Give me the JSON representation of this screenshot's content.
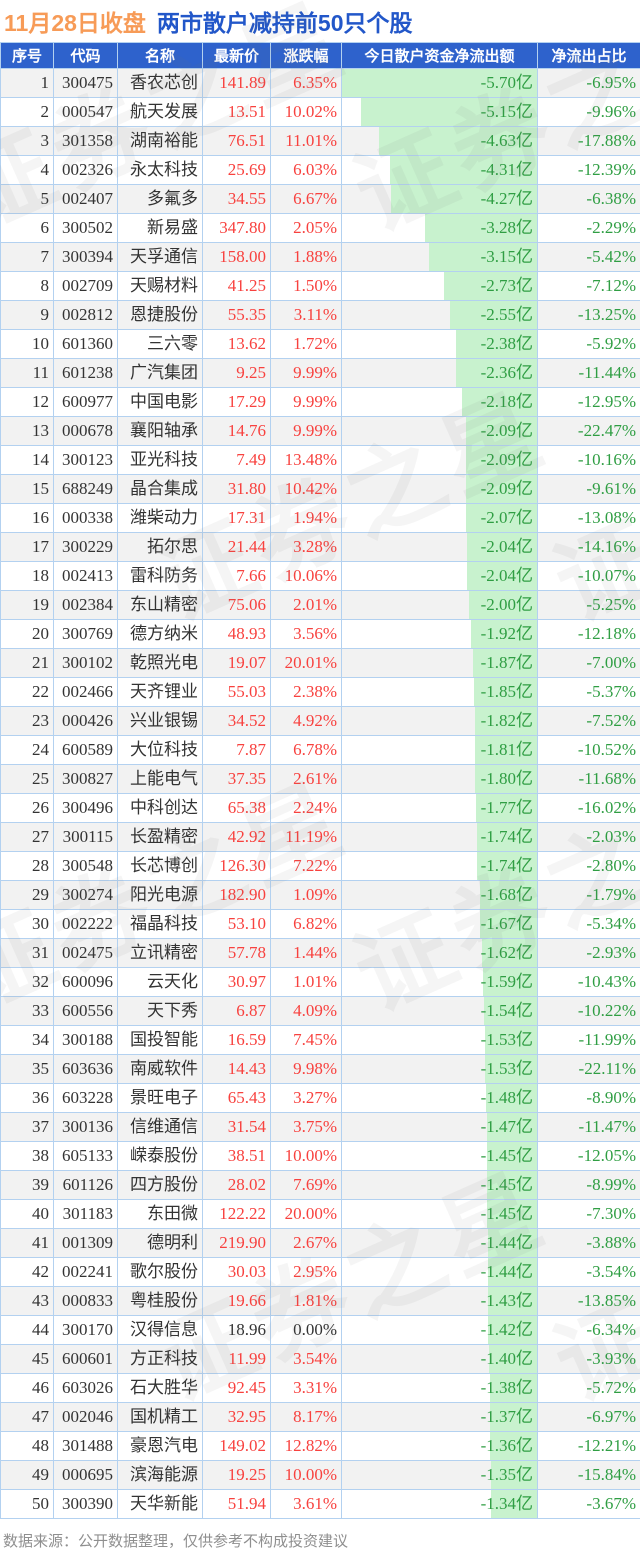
{
  "title": {
    "date_part": "11月28日收盘",
    "main_part": "两市散户减持前50只个股"
  },
  "table": {
    "columns": [
      "序号",
      "代码",
      "名称",
      "最新价",
      "涨跌幅",
      "今日散户资金净流出额",
      "净流出占比"
    ],
    "rows": [
      {
        "no": "1",
        "code": "300475",
        "name": "香农芯创",
        "price": "141.89",
        "change": "6.35%",
        "outflow": "-5.70亿",
        "ratio": "-6.95%"
      },
      {
        "no": "2",
        "code": "000547",
        "name": "航天发展",
        "price": "13.51",
        "change": "10.02%",
        "outflow": "-5.15亿",
        "ratio": "-9.96%"
      },
      {
        "no": "3",
        "code": "301358",
        "name": "湖南裕能",
        "price": "76.51",
        "change": "11.01%",
        "outflow": "-4.63亿",
        "ratio": "-17.88%"
      },
      {
        "no": "4",
        "code": "002326",
        "name": "永太科技",
        "price": "25.69",
        "change": "6.03%",
        "outflow": "-4.31亿",
        "ratio": "-12.39%"
      },
      {
        "no": "5",
        "code": "002407",
        "name": "多氟多",
        "price": "34.55",
        "change": "6.67%",
        "outflow": "-4.27亿",
        "ratio": "-6.38%"
      },
      {
        "no": "6",
        "code": "300502",
        "name": "新易盛",
        "price": "347.80",
        "change": "2.05%",
        "outflow": "-3.28亿",
        "ratio": "-2.29%"
      },
      {
        "no": "7",
        "code": "300394",
        "name": "天孚通信",
        "price": "158.00",
        "change": "1.88%",
        "outflow": "-3.15亿",
        "ratio": "-5.42%"
      },
      {
        "no": "8",
        "code": "002709",
        "name": "天赐材料",
        "price": "41.25",
        "change": "1.50%",
        "outflow": "-2.73亿",
        "ratio": "-7.12%"
      },
      {
        "no": "9",
        "code": "002812",
        "name": "恩捷股份",
        "price": "55.35",
        "change": "3.11%",
        "outflow": "-2.55亿",
        "ratio": "-13.25%"
      },
      {
        "no": "10",
        "code": "601360",
        "name": "三六零",
        "price": "13.62",
        "change": "1.72%",
        "outflow": "-2.38亿",
        "ratio": "-5.92%"
      },
      {
        "no": "11",
        "code": "601238",
        "name": "广汽集团",
        "price": "9.25",
        "change": "9.99%",
        "outflow": "-2.36亿",
        "ratio": "-11.44%"
      },
      {
        "no": "12",
        "code": "600977",
        "name": "中国电影",
        "price": "17.29",
        "change": "9.99%",
        "outflow": "-2.18亿",
        "ratio": "-12.95%"
      },
      {
        "no": "13",
        "code": "000678",
        "name": "襄阳轴承",
        "price": "14.76",
        "change": "9.99%",
        "outflow": "-2.09亿",
        "ratio": "-22.47%"
      },
      {
        "no": "14",
        "code": "300123",
        "name": "亚光科技",
        "price": "7.49",
        "change": "13.48%",
        "outflow": "-2.09亿",
        "ratio": "-10.16%"
      },
      {
        "no": "15",
        "code": "688249",
        "name": "晶合集成",
        "price": "31.80",
        "change": "10.42%",
        "outflow": "-2.09亿",
        "ratio": "-9.61%"
      },
      {
        "no": "16",
        "code": "000338",
        "name": "潍柴动力",
        "price": "17.31",
        "change": "1.94%",
        "outflow": "-2.07亿",
        "ratio": "-13.08%"
      },
      {
        "no": "17",
        "code": "300229",
        "name": "拓尔思",
        "price": "21.44",
        "change": "3.28%",
        "outflow": "-2.04亿",
        "ratio": "-14.16%"
      },
      {
        "no": "18",
        "code": "002413",
        "name": "雷科防务",
        "price": "7.66",
        "change": "10.06%",
        "outflow": "-2.04亿",
        "ratio": "-10.07%"
      },
      {
        "no": "19",
        "code": "002384",
        "name": "东山精密",
        "price": "75.06",
        "change": "2.01%",
        "outflow": "-2.00亿",
        "ratio": "-5.25%"
      },
      {
        "no": "20",
        "code": "300769",
        "name": "德方纳米",
        "price": "48.93",
        "change": "3.56%",
        "outflow": "-1.92亿",
        "ratio": "-12.18%"
      },
      {
        "no": "21",
        "code": "300102",
        "name": "乾照光电",
        "price": "19.07",
        "change": "20.01%",
        "outflow": "-1.87亿",
        "ratio": "-7.00%"
      },
      {
        "no": "22",
        "code": "002466",
        "name": "天齐锂业",
        "price": "55.03",
        "change": "2.38%",
        "outflow": "-1.85亿",
        "ratio": "-5.37%"
      },
      {
        "no": "23",
        "code": "000426",
        "name": "兴业银锡",
        "price": "34.52",
        "change": "4.92%",
        "outflow": "-1.82亿",
        "ratio": "-7.52%"
      },
      {
        "no": "24",
        "code": "600589",
        "name": "大位科技",
        "price": "7.87",
        "change": "6.78%",
        "outflow": "-1.81亿",
        "ratio": "-10.52%"
      },
      {
        "no": "25",
        "code": "300827",
        "name": "上能电气",
        "price": "37.35",
        "change": "2.61%",
        "outflow": "-1.80亿",
        "ratio": "-11.68%"
      },
      {
        "no": "26",
        "code": "300496",
        "name": "中科创达",
        "price": "65.38",
        "change": "2.24%",
        "outflow": "-1.77亿",
        "ratio": "-16.02%"
      },
      {
        "no": "27",
        "code": "300115",
        "name": "长盈精密",
        "price": "42.92",
        "change": "11.19%",
        "outflow": "-1.74亿",
        "ratio": "-2.03%"
      },
      {
        "no": "28",
        "code": "300548",
        "name": "长芯博创",
        "price": "126.30",
        "change": "7.22%",
        "outflow": "-1.74亿",
        "ratio": "-2.80%"
      },
      {
        "no": "29",
        "code": "300274",
        "name": "阳光电源",
        "price": "182.90",
        "change": "1.09%",
        "outflow": "-1.68亿",
        "ratio": "-1.79%"
      },
      {
        "no": "30",
        "code": "002222",
        "name": "福晶科技",
        "price": "53.10",
        "change": "6.82%",
        "outflow": "-1.67亿",
        "ratio": "-5.34%"
      },
      {
        "no": "31",
        "code": "002475",
        "name": "立讯精密",
        "price": "57.78",
        "change": "1.44%",
        "outflow": "-1.62亿",
        "ratio": "-2.93%"
      },
      {
        "no": "32",
        "code": "600096",
        "name": "云天化",
        "price": "30.97",
        "change": "1.01%",
        "outflow": "-1.59亿",
        "ratio": "-10.43%"
      },
      {
        "no": "33",
        "code": "600556",
        "name": "天下秀",
        "price": "6.87",
        "change": "4.09%",
        "outflow": "-1.54亿",
        "ratio": "-10.22%"
      },
      {
        "no": "34",
        "code": "300188",
        "name": "国投智能",
        "price": "16.59",
        "change": "7.45%",
        "outflow": "-1.53亿",
        "ratio": "-11.99%"
      },
      {
        "no": "35",
        "code": "603636",
        "name": "南威软件",
        "price": "14.43",
        "change": "9.98%",
        "outflow": "-1.53亿",
        "ratio": "-22.11%"
      },
      {
        "no": "36",
        "code": "603228",
        "name": "景旺电子",
        "price": "65.43",
        "change": "3.27%",
        "outflow": "-1.48亿",
        "ratio": "-8.90%"
      },
      {
        "no": "37",
        "code": "300136",
        "name": "信维通信",
        "price": "31.54",
        "change": "3.75%",
        "outflow": "-1.47亿",
        "ratio": "-11.47%"
      },
      {
        "no": "38",
        "code": "605133",
        "name": "嵘泰股份",
        "price": "38.51",
        "change": "10.00%",
        "outflow": "-1.45亿",
        "ratio": "-12.05%"
      },
      {
        "no": "39",
        "code": "601126",
        "name": "四方股份",
        "price": "28.02",
        "change": "7.69%",
        "outflow": "-1.45亿",
        "ratio": "-8.99%"
      },
      {
        "no": "40",
        "code": "301183",
        "name": "东田微",
        "price": "122.22",
        "change": "20.00%",
        "outflow": "-1.45亿",
        "ratio": "-7.30%"
      },
      {
        "no": "41",
        "code": "001309",
        "name": "德明利",
        "price": "219.90",
        "change": "2.67%",
        "outflow": "-1.44亿",
        "ratio": "-3.88%"
      },
      {
        "no": "42",
        "code": "002241",
        "name": "歌尔股份",
        "price": "30.03",
        "change": "2.95%",
        "outflow": "-1.44亿",
        "ratio": "-3.54%"
      },
      {
        "no": "43",
        "code": "000833",
        "name": "粤桂股份",
        "price": "19.66",
        "change": "1.81%",
        "outflow": "-1.43亿",
        "ratio": "-13.85%"
      },
      {
        "no": "44",
        "code": "300170",
        "name": "汉得信息",
        "price": "18.96",
        "change": "0.00%",
        "outflow": "-1.42亿",
        "ratio": "-6.34%"
      },
      {
        "no": "45",
        "code": "600601",
        "name": "方正科技",
        "price": "11.99",
        "change": "3.54%",
        "outflow": "-1.40亿",
        "ratio": "-3.93%"
      },
      {
        "no": "46",
        "code": "603026",
        "name": "石大胜华",
        "price": "92.45",
        "change": "3.31%",
        "outflow": "-1.38亿",
        "ratio": "-5.72%"
      },
      {
        "no": "47",
        "code": "002046",
        "name": "国机精工",
        "price": "32.95",
        "change": "8.17%",
        "outflow": "-1.37亿",
        "ratio": "-6.97%"
      },
      {
        "no": "48",
        "code": "301488",
        "name": "豪恩汽电",
        "price": "149.02",
        "change": "12.82%",
        "outflow": "-1.36亿",
        "ratio": "-12.21%"
      },
      {
        "no": "49",
        "code": "000695",
        "name": "滨海能源",
        "price": "19.25",
        "change": "10.00%",
        "outflow": "-1.35亿",
        "ratio": "-15.84%"
      },
      {
        "no": "50",
        "code": "300390",
        "name": "天华新能",
        "price": "51.94",
        "change": "3.61%",
        "outflow": "-1.34亿",
        "ratio": "-3.67%"
      }
    ]
  },
  "footer": {
    "source_note": "数据来源：公开数据整理，仅供参考不构成投资建议"
  },
  "watermark": {
    "text": "证券之星"
  },
  "colors": {
    "title_orange": "#f79b57",
    "title_blue": "#2257c9",
    "header_bg": "#2e62cc",
    "border": "#b3d1f0",
    "stripe": "#f2f2f2",
    "up_red": "#f8413e",
    "outflow_green_text": "#2f9e43",
    "outflow_bar_green": "#c8f2ce",
    "footer_gray": "#8f8f8f"
  }
}
